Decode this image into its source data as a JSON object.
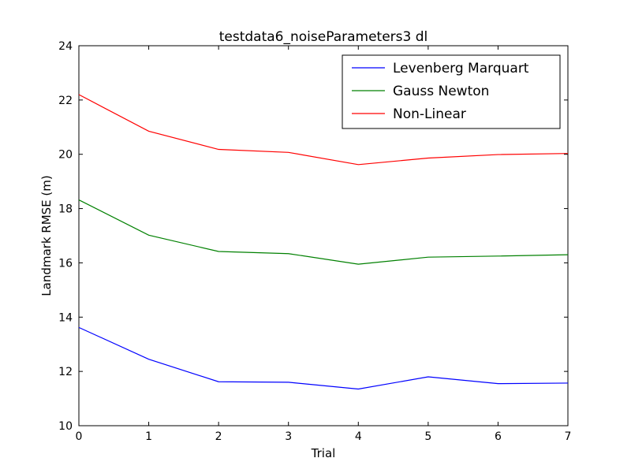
{
  "chart_data": {
    "type": "line",
    "title": "testdata6_noiseParameters3 dl",
    "xlabel": "Trial",
    "ylabel": "Landmark RMSE (m)",
    "xlim": [
      0,
      7
    ],
    "ylim": [
      10,
      24
    ],
    "xticks": [
      0,
      1,
      2,
      3,
      4,
      5,
      6,
      7
    ],
    "yticks": [
      10,
      12,
      14,
      16,
      18,
      20,
      22,
      24
    ],
    "grid": false,
    "legend_position": "top-right",
    "x": [
      0,
      1,
      2,
      3,
      4,
      5,
      6,
      7
    ],
    "series": [
      {
        "name": "Levenberg Marquart",
        "color": "#0000ff",
        "values": [
          13.62,
          12.45,
          11.62,
          11.6,
          11.35,
          11.8,
          11.55,
          11.57
        ]
      },
      {
        "name": "Gauss Newton",
        "color": "#008000",
        "values": [
          18.32,
          17.02,
          16.42,
          16.34,
          15.95,
          16.21,
          16.25,
          16.3
        ]
      },
      {
        "name": "Non-Linear",
        "color": "#ff0000",
        "values": [
          22.2,
          20.85,
          20.18,
          20.07,
          19.62,
          19.86,
          19.99,
          20.03
        ]
      }
    ]
  }
}
